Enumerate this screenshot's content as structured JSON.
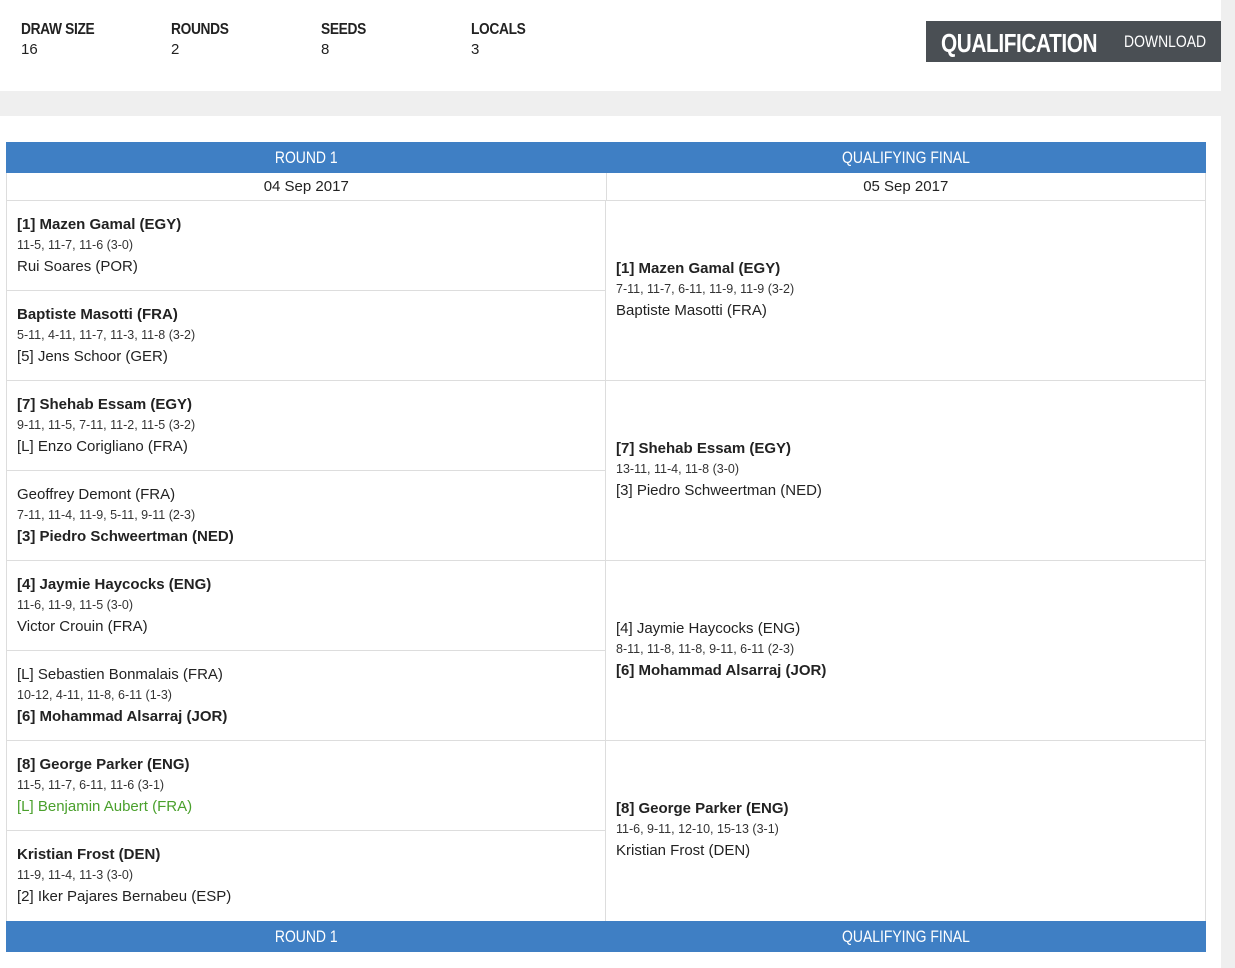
{
  "summary": {
    "stats": [
      {
        "label": "DRAW SIZE",
        "value": "16"
      },
      {
        "label": "ROUNDS",
        "value": "2"
      },
      {
        "label": "SEEDS",
        "value": "8"
      },
      {
        "label": "LOCALS",
        "value": "3"
      }
    ],
    "qualification_title": "QUALIFICATION",
    "download_label": "DOWNLOAD"
  },
  "rounds": [
    {
      "name": "ROUND 1",
      "date": "04 Sep 2017"
    },
    {
      "name": "QUALIFYING FINAL",
      "date": "05 Sep 2017"
    }
  ],
  "round1_matches": [
    {
      "p1": "[1] Mazen Gamal (EGY)",
      "p1_winner": true,
      "score": "11-5, 11-7, 11-6 (3-0)",
      "p2": "Rui Soares (POR)",
      "p2_winner": false
    },
    {
      "p1": "Baptiste Masotti (FRA)",
      "p1_winner": true,
      "score": "5-11, 4-11, 11-7, 11-3, 11-8 (3-2)",
      "p2": "[5] Jens Schoor (GER)",
      "p2_winner": false
    },
    {
      "p1": "[7] Shehab Essam (EGY)",
      "p1_winner": true,
      "score": "9-11, 11-5, 7-11, 11-2, 11-5 (3-2)",
      "p2": "[L] Enzo Corigliano (FRA)",
      "p2_winner": false
    },
    {
      "p1": "Geoffrey Demont (FRA)",
      "p1_winner": false,
      "score": "7-11, 11-4, 11-9, 5-11, 9-11 (2-3)",
      "p2": "[3] Piedro Schweertman (NED)",
      "p2_winner": true
    },
    {
      "p1": "[4] Jaymie Haycocks (ENG)",
      "p1_winner": true,
      "score": "11-6, 11-9, 11-5 (3-0)",
      "p2": "Victor Crouin (FRA)",
      "p2_winner": false
    },
    {
      "p1": "[L] Sebastien Bonmalais (FRA)",
      "p1_winner": false,
      "score": "10-12, 4-11, 11-8, 6-11 (1-3)",
      "p2": "[6] Mohammad Alsarraj (JOR)",
      "p2_winner": true
    },
    {
      "p1": "[8] George Parker (ENG)",
      "p1_winner": true,
      "score": "11-5, 11-7, 6-11, 11-6 (3-1)",
      "p2": "[L] Benjamin Aubert (FRA)",
      "p2_winner": false,
      "p2_local": true
    },
    {
      "p1": "Kristian Frost (DEN)",
      "p1_winner": true,
      "score": "11-9, 11-4, 11-3 (3-0)",
      "p2": "[2] Iker Pajares Bernabeu (ESP)",
      "p2_winner": false
    }
  ],
  "final_matches": [
    {
      "p1": "[1] Mazen Gamal (EGY)",
      "p1_winner": true,
      "score": "7-11, 11-7, 6-11, 11-9, 11-9 (3-2)",
      "p2": "Baptiste Masotti (FRA)",
      "p2_winner": false
    },
    {
      "p1": "[7] Shehab Essam (EGY)",
      "p1_winner": true,
      "score": "13-11, 11-4, 11-8 (3-0)",
      "p2": "[3] Piedro Schweertman (NED)",
      "p2_winner": false
    },
    {
      "p1": "[4] Jaymie Haycocks (ENG)",
      "p1_winner": false,
      "score": "8-11, 11-8, 11-8, 9-11, 6-11 (2-3)",
      "p2": "[6] Mohammad Alsarraj (JOR)",
      "p2_winner": true
    },
    {
      "p1": "[8] George Parker (ENG)",
      "p1_winner": true,
      "score": "11-6, 9-11, 12-10, 15-13 (3-1)",
      "p2": "Kristian Frost (DEN)",
      "p2_winner": false
    }
  ],
  "colors": {
    "accent_blue": "#3f7fc4",
    "qual_box": "#4a4f54",
    "local_green": "#4aa02c",
    "band_gray": "#efefef"
  }
}
